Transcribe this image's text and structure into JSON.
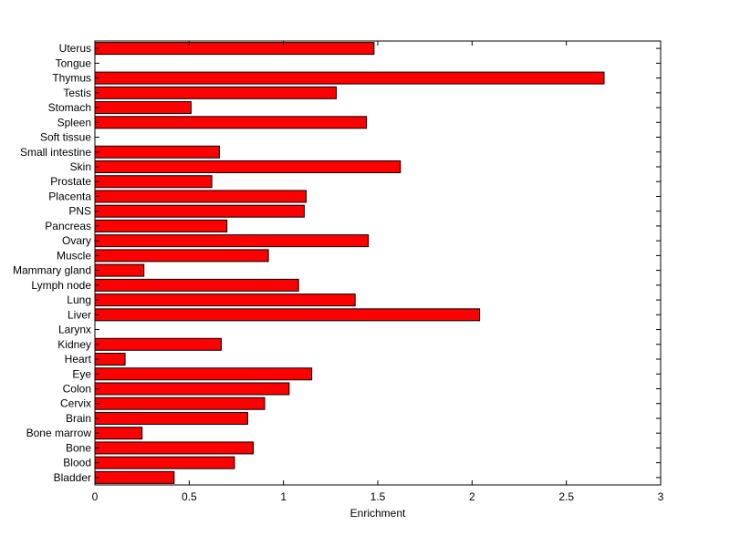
{
  "chart_data": {
    "type": "bar",
    "orientation": "horizontal",
    "categories": [
      "Uterus",
      "Tongue",
      "Thymus",
      "Testis",
      "Stomach",
      "Spleen",
      "Soft tissue",
      "Small intestine",
      "Skin",
      "Prostate",
      "Placenta",
      "PNS",
      "Pancreas",
      "Ovary",
      "Muscle",
      "Mammary gland",
      "Lymph node",
      "Lung",
      "Liver",
      "Larynx",
      "Kidney",
      "Heart",
      "Eye",
      "Colon",
      "Cervix",
      "Brain",
      "Bone marrow",
      "Bone",
      "Blood",
      "Bladder"
    ],
    "values": [
      1.48,
      0,
      2.7,
      1.28,
      0.51,
      1.44,
      0,
      0.66,
      1.62,
      0.62,
      1.12,
      1.11,
      0.7,
      1.45,
      0.92,
      0.26,
      1.08,
      1.38,
      2.04,
      0,
      0.67,
      0.16,
      1.15,
      1.03,
      0.9,
      0.81,
      0.25,
      0.84,
      0.74,
      0.42
    ],
    "xlabel": "Enrichment",
    "ylabel": "",
    "title": "",
    "xlim": [
      0,
      3
    ],
    "xticks": [
      0,
      0.5,
      1,
      1.5,
      2,
      2.5,
      3
    ],
    "xtick_labels": [
      "0",
      "0.5",
      "1",
      "1.5",
      "2",
      "2.5",
      "3"
    ],
    "grid": false,
    "legend": "none",
    "bar_color": "#ff0000",
    "edge_color": "#000000"
  }
}
